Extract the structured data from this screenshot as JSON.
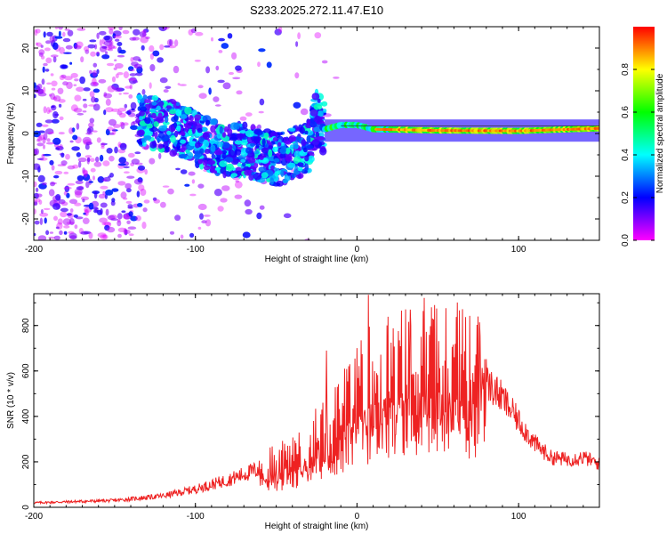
{
  "title": "S233.2025.272.11.47.E10",
  "chart_data": [
    {
      "type": "heatmap",
      "name": "spectrogram",
      "xlabel": "Height of straight line (km)",
      "ylabel": "Frequency (Hz)",
      "xlim": [
        -200,
        150
      ],
      "ylim": [
        -25,
        25
      ],
      "xticks": [
        -200,
        -100,
        0,
        100
      ],
      "xtick_labels": [
        "-200",
        "-100",
        "0",
        "100"
      ],
      "yticks": [
        -20,
        -10,
        0,
        10,
        20
      ],
      "ytick_labels": [
        "-20",
        "-10",
        "0",
        "10",
        "20"
      ],
      "colorbar": {
        "label": "Normalized spectral amplitude",
        "range": [
          0,
          1
        ],
        "ticks": [
          0.0,
          0.2,
          0.4,
          0.6,
          0.8
        ],
        "tick_labels": [
          "0.0",
          "0.2",
          "0.4",
          "0.6",
          "0.8"
        ],
        "colors": [
          "#ff00ff",
          "#0000ff",
          "#00ffff",
          "#00ff00",
          "#ffff00",
          "#ff0000"
        ]
      },
      "ridge": {
        "x": [
          -130,
          -110,
          -90,
          -80,
          -70,
          -60,
          -50,
          -40,
          -30,
          -25,
          -20,
          -10,
          0,
          10,
          50,
          100,
          150
        ],
        "y": [
          3,
          1,
          -3,
          -4,
          -4,
          -5,
          -6,
          -5,
          -3,
          4,
          1,
          2,
          2,
          1,
          0.7,
          0.6,
          1.2
        ]
      },
      "strong_band": {
        "x_range": [
          -20,
          150
        ],
        "frequency": 0.7,
        "peak_amplitude": 0.95
      }
    },
    {
      "type": "line",
      "name": "snr",
      "xlabel": "Height of straight line (km)",
      "ylabel": "SNR (10 * v/v)",
      "xlim": [
        -200,
        150
      ],
      "ylim": [
        0,
        940
      ],
      "xticks": [
        -200,
        -100,
        0,
        100
      ],
      "xtick_labels": [
        "-200",
        "-100",
        "0",
        "100"
      ],
      "yticks": [
        0,
        200,
        400,
        600,
        800
      ],
      "ytick_labels": [
        "0",
        "200",
        "400",
        "600",
        "800"
      ],
      "color": "#ee2222",
      "envelope": {
        "x": [
          -200,
          -150,
          -120,
          -100,
          -80,
          -60,
          -40,
          -30,
          -20,
          -10,
          0,
          10,
          20,
          30,
          40,
          50,
          60,
          70,
          80,
          90,
          100,
          110,
          120,
          130,
          140,
          150
        ],
        "y": [
          20,
          30,
          50,
          80,
          120,
          170,
          220,
          270,
          330,
          400,
          480,
          560,
          580,
          610,
          620,
          630,
          620,
          590,
          550,
          480,
          380,
          280,
          220,
          210,
          220,
          190
        ]
      },
      "notable_peaks": [
        {
          "x": 7,
          "y": 935
        },
        {
          "x": 33,
          "y": 870
        },
        {
          "x": 48,
          "y": 890
        },
        {
          "x": -19,
          "y": 690
        }
      ]
    }
  ]
}
